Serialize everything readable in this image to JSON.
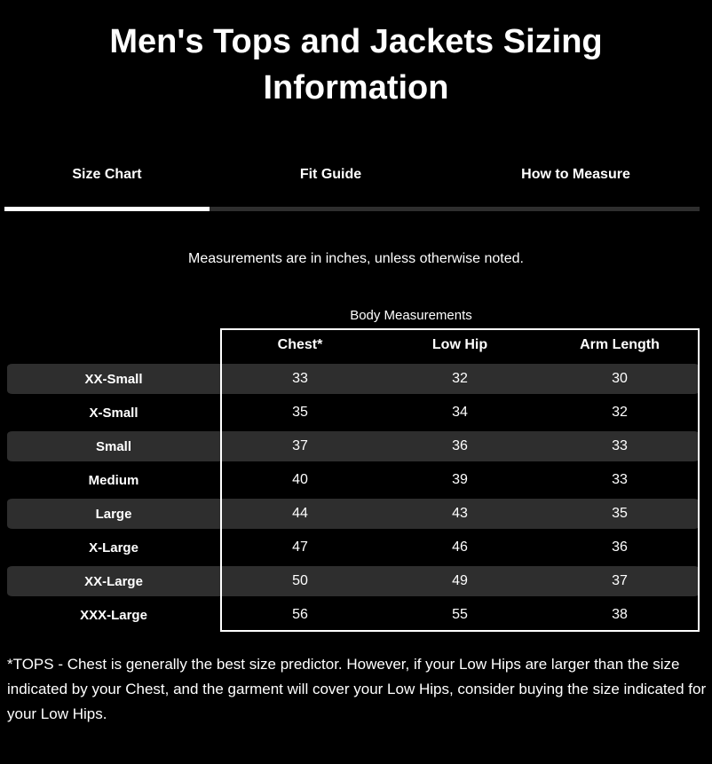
{
  "title": "Men's Tops and Jackets Sizing Information",
  "tabs": {
    "items": [
      {
        "label": "Size Chart",
        "active": true
      },
      {
        "label": "Fit Guide",
        "active": false
      },
      {
        "label": "How to Measure",
        "active": false
      }
    ]
  },
  "note": "Measurements are in inches, unless otherwise noted.",
  "size_table": {
    "caption": "Body Measurements",
    "columns": [
      "Chest*",
      "Low Hip",
      "Arm Length"
    ],
    "rows": [
      {
        "size": "XX-Small",
        "values": [
          "33",
          "32",
          "30"
        ]
      },
      {
        "size": "X-Small",
        "values": [
          "35",
          "34",
          "32"
        ]
      },
      {
        "size": "Small",
        "values": [
          "37",
          "36",
          "33"
        ]
      },
      {
        "size": "Medium",
        "values": [
          "40",
          "39",
          "33"
        ]
      },
      {
        "size": "Large",
        "values": [
          "44",
          "43",
          "35"
        ]
      },
      {
        "size": "X-Large",
        "values": [
          "47",
          "46",
          "36"
        ]
      },
      {
        "size": "XX-Large",
        "values": [
          "50",
          "49",
          "37"
        ]
      },
      {
        "size": "XXX-Large",
        "values": [
          "56",
          "55",
          "38"
        ]
      }
    ]
  },
  "footnote": "*TOPS - Chest is generally the best size predictor. However, if your Low Hips are larger than the size indicated by your Chest, and the garment will cover your Low Hips, consider buying the size indicated for your Low Hips.",
  "colors": {
    "background": "#000000",
    "text": "#ffffff",
    "stripe": "#2e2e2e",
    "active_underline": "#ffffff",
    "inactive_underline": "#2e2e2e",
    "table_border": "#ffffff"
  }
}
